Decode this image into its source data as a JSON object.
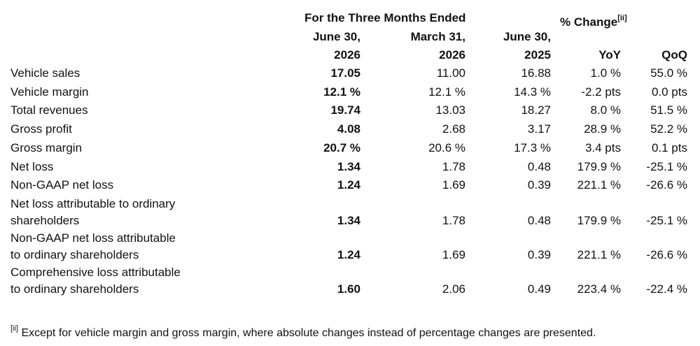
{
  "table": {
    "group_headers": {
      "period": "For the Three Months Ended",
      "change": "% Change",
      "change_note": "[ii]"
    },
    "columns": [
      {
        "line1": "June 30,",
        "line2": "2026"
      },
      {
        "line1": "March 31,",
        "line2": "2026"
      },
      {
        "line1": "June 30,",
        "line2": "2025"
      },
      {
        "line1": "YoY"
      },
      {
        "line1": "QoQ"
      }
    ],
    "rows": [
      {
        "label": [
          "Vehicle sales"
        ],
        "values": [
          "17.05",
          "11.00",
          "16.88",
          "1.0 %",
          "55.0 %"
        ]
      },
      {
        "label": [
          "Vehicle margin"
        ],
        "values": [
          "12.1 %",
          "12.1 %",
          "14.3 %",
          "-2.2 pts",
          "0.0 pts"
        ]
      },
      {
        "label": [
          "Total revenues"
        ],
        "values": [
          "19.74",
          "13.03",
          "18.27",
          "8.0 %",
          "51.5 %"
        ]
      },
      {
        "label": [
          "Gross profit"
        ],
        "values": [
          "4.08",
          "2.68",
          "3.17",
          "28.9 %",
          "52.2 %"
        ]
      },
      {
        "label": [
          "Gross margin"
        ],
        "values": [
          "20.7 %",
          "20.6 %",
          "17.3 %",
          "3.4 pts",
          "0.1 pts"
        ]
      },
      {
        "label": [
          "Net loss"
        ],
        "values": [
          "1.34",
          "1.78",
          "0.48",
          "179.9 %",
          "-25.1 %"
        ]
      },
      {
        "label": [
          "Non-GAAP net loss"
        ],
        "values": [
          "1.24",
          "1.69",
          "0.39",
          "221.1 %",
          "-26.6 %"
        ]
      },
      {
        "label": [
          "Net loss attributable to ordinary",
          "shareholders"
        ],
        "values": [
          "1.34",
          "1.78",
          "0.48",
          "179.9 %",
          "-25.1 %"
        ]
      },
      {
        "label": [
          "Non-GAAP net loss attributable",
          "to ordinary shareholders"
        ],
        "values": [
          "1.24",
          "1.69",
          "0.39",
          "221.1 %",
          "-26.6 %"
        ]
      },
      {
        "label": [
          "Comprehensive loss attributable",
          "to ordinary shareholders"
        ],
        "values": [
          "1.60",
          "2.06",
          "0.49",
          "223.4 %",
          "-22.4 %"
        ]
      }
    ]
  },
  "footnote": {
    "marker": "[ii]",
    "text": "Except for vehicle margin and gross margin, where absolute changes instead of percentage changes are presented."
  }
}
